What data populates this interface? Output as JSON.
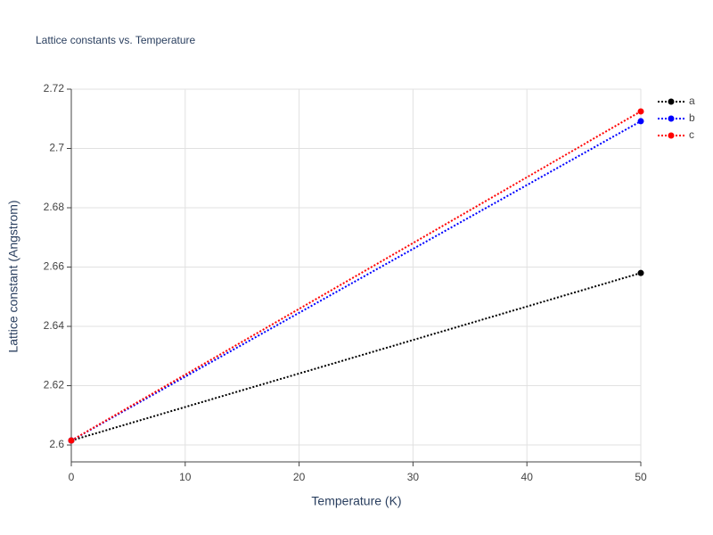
{
  "chart_data": {
    "type": "line",
    "title": "Lattice constants vs. Temperature",
    "x_label": "Temperature (K)",
    "y_label": "Lattice constant (Angstrom)",
    "x": [
      0,
      50
    ],
    "series": [
      {
        "name": "a",
        "color": "#000000",
        "values": [
          2.6015,
          2.658
        ]
      },
      {
        "name": "b",
        "color": "#0000ff",
        "values": [
          2.6015,
          2.7092
        ]
      },
      {
        "name": "c",
        "color": "#ff0000",
        "values": [
          2.6015,
          2.7125
        ]
      }
    ],
    "xlim": [
      0,
      50
    ],
    "xticks": [
      0,
      10,
      20,
      30,
      40,
      50
    ],
    "ylim": [
      2.5943,
      2.72
    ],
    "yticks": [
      2.6,
      2.62,
      2.64,
      2.66,
      2.68,
      2.7,
      2.72
    ],
    "grid": true,
    "legend": "right"
  }
}
